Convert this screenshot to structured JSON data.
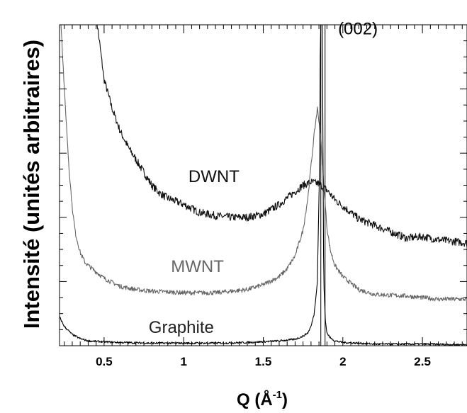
{
  "chart_data": {
    "type": "line",
    "title": "",
    "xlabel": "Q (Å",
    "xlabel_sup": "-1",
    "xlabel_close": ")",
    "ylabel": "Intensité (unités arbitraires)",
    "xlim": [
      0.22,
      2.78
    ],
    "ylim": [
      0,
      10
    ],
    "x_ticks": [
      0.5,
      1,
      1.5,
      2,
      2.5
    ],
    "x_tick_labels": [
      "0.5",
      "1",
      "1.5",
      "2",
      "2.5"
    ],
    "y_tick_labels_shown": false,
    "grid": false,
    "series": [
      {
        "name": "DWNT",
        "color": "#111111",
        "x": [
          0.45,
          0.5,
          0.55,
          0.6,
          0.65,
          0.7,
          0.75,
          0.8,
          0.85,
          0.9,
          1.0,
          1.1,
          1.2,
          1.3,
          1.4,
          1.5,
          1.6,
          1.7,
          1.75,
          1.8,
          1.85,
          1.9,
          1.95,
          2.0,
          2.1,
          2.2,
          2.3,
          2.4,
          2.5,
          2.6,
          2.7,
          2.78
        ],
        "y": [
          10.3,
          8.3,
          7.4,
          6.7,
          6.2,
          5.8,
          5.4,
          5.0,
          4.75,
          4.6,
          4.4,
          4.15,
          4.05,
          4.0,
          4.0,
          4.1,
          4.4,
          4.8,
          5.0,
          5.1,
          5.05,
          4.85,
          4.55,
          4.35,
          3.95,
          3.75,
          3.55,
          3.35,
          3.4,
          3.3,
          3.25,
          3.2
        ]
      },
      {
        "name": "MWNT",
        "color": "#666666",
        "x": [
          0.22,
          0.25,
          0.28,
          0.3,
          0.32,
          0.35,
          0.38,
          0.4,
          0.45,
          0.5,
          0.6,
          0.7,
          0.8,
          1.0,
          1.2,
          1.4,
          1.5,
          1.6,
          1.65,
          1.7,
          1.75,
          1.78,
          1.8,
          1.82,
          1.84,
          1.86,
          1.88,
          1.9,
          1.92,
          1.95,
          2.0,
          2.05,
          2.1,
          2.2,
          2.4,
          2.6,
          2.78
        ],
        "y": [
          11.0,
          8.0,
          5.5,
          4.3,
          3.5,
          2.9,
          2.6,
          2.5,
          2.3,
          2.1,
          1.85,
          1.75,
          1.7,
          1.65,
          1.65,
          1.75,
          1.9,
          2.15,
          2.4,
          2.8,
          3.6,
          4.6,
          5.6,
          6.6,
          7.4,
          6.6,
          5.0,
          3.7,
          3.0,
          2.5,
          2.15,
          1.95,
          1.75,
          1.6,
          1.55,
          1.45,
          1.45
        ]
      },
      {
        "name": "Graphite",
        "color": "#000000",
        "x": [
          0.22,
          0.25,
          0.3,
          0.35,
          0.4,
          0.5,
          0.6,
          0.8,
          1.0,
          1.2,
          1.4,
          1.6,
          1.7,
          1.75,
          1.78,
          1.8,
          1.82,
          1.84,
          1.855,
          1.86,
          1.87,
          1.875,
          1.88,
          1.89,
          1.9,
          1.92,
          1.95,
          2.0,
          2.1,
          2.2,
          2.5,
          2.78
        ],
        "y": [
          0.9,
          0.6,
          0.35,
          0.22,
          0.15,
          0.12,
          0.1,
          0.08,
          0.08,
          0.08,
          0.1,
          0.15,
          0.2,
          0.3,
          0.4,
          0.6,
          1.0,
          2.0,
          6.0,
          11.0,
          11.0,
          6.0,
          2.0,
          0.8,
          0.4,
          0.25,
          0.15,
          0.1,
          0.08,
          0.05,
          0.05,
          0.03
        ]
      }
    ],
    "annotations": [
      {
        "text": "(002)",
        "x": 1.97,
        "y": 9.7
      },
      {
        "text": "DWNT",
        "x": 1.03,
        "y": 5.1
      },
      {
        "text": "MWNT",
        "x": 0.92,
        "y": 2.3
      },
      {
        "text": "Graphite",
        "x": 0.78,
        "y": 0.4
      }
    ],
    "reference_lines": [
      {
        "x": 1.875,
        "label": "(002)"
      }
    ]
  }
}
